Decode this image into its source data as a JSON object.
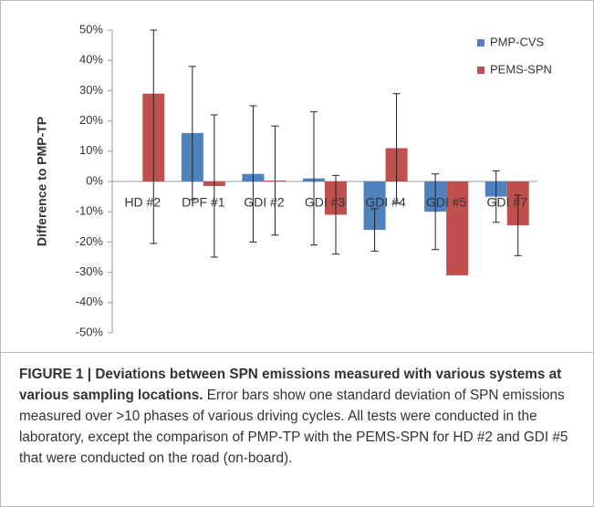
{
  "chart_data": {
    "type": "bar",
    "y_label": "Difference to PMP-TP",
    "categories": [
      "HD #2",
      "DPF #1",
      "GDI #2",
      "GDI #3",
      "GDI #4",
      "GDI #5",
      "GDI #7"
    ],
    "series": [
      {
        "name": "PMP-CVS",
        "color": "#4f81bd",
        "values": [
          null,
          16,
          2.5,
          1,
          -16,
          -10,
          -5
        ],
        "errors": [
          null,
          22,
          22.5,
          22,
          7,
          12.5,
          8.5
        ]
      },
      {
        "name": "PEMS-SPN",
        "color": "#c0504d",
        "values": [
          29,
          -1.5,
          0.3,
          -11,
          11,
          -31,
          -14.5
        ],
        "errors": [
          49.5,
          23.5,
          18,
          13,
          18,
          null,
          10
        ]
      }
    ],
    "ylim": [
      -50,
      50
    ],
    "yticks": [
      {
        "value": -50,
        "label": "-50%"
      },
      {
        "value": -40,
        "label": "-40%"
      },
      {
        "value": -30,
        "label": "-30%"
      },
      {
        "value": -20,
        "label": "-20%"
      },
      {
        "value": -10,
        "label": "-10%"
      },
      {
        "value": 0,
        "label": "0%"
      },
      {
        "value": 10,
        "label": "10%"
      },
      {
        "value": 20,
        "label": "20%"
      },
      {
        "value": 30,
        "label": "30%"
      },
      {
        "value": 40,
        "label": "40%"
      },
      {
        "value": 50,
        "label": "50%"
      }
    ],
    "legend": "top-right"
  },
  "caption": {
    "label": "FIGURE 1 | Deviations between SPN emissions measured with various systems at various sampling locations.",
    "text": "Error bars show one standard deviation of SPN emissions measured over >10 phases of various driving cycles. All tests were conducted in the laboratory, except the comparison of PMP-TP with the PEMS-SPN for HD #2 and GDI #5 that were conducted on the road (on-board)."
  }
}
